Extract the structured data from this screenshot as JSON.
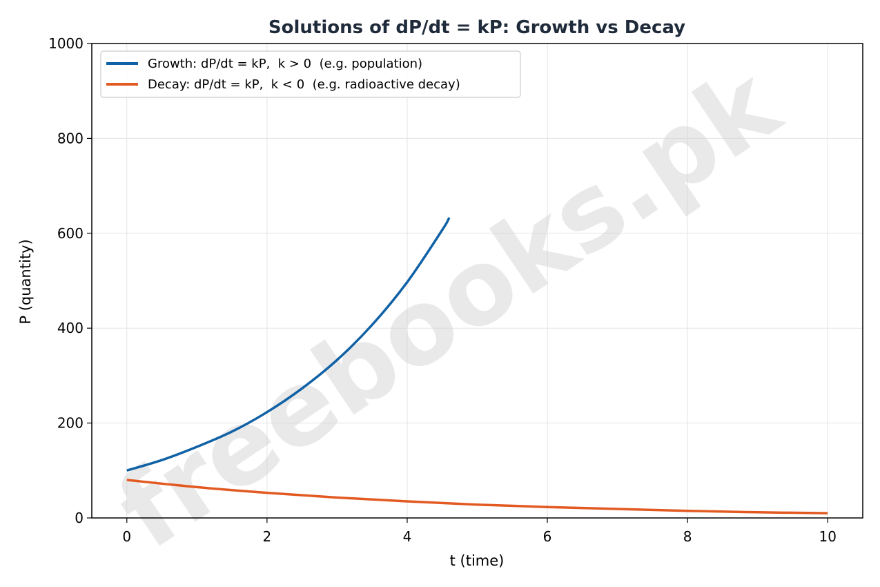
{
  "watermark": "freebooks.pk",
  "chart_data": {
    "type": "line",
    "title": "Solutions of dP/dt = kP: Growth vs Decay",
    "xlabel": "t (time)",
    "ylabel": "P (quantity)",
    "xlim": [
      -0.5,
      10.5
    ],
    "ylim": [
      0,
      1000
    ],
    "xticks": [
      0,
      2,
      4,
      6,
      8,
      10
    ],
    "yticks": [
      0,
      200,
      400,
      600,
      800,
      1000
    ],
    "grid": true,
    "legend_position": "top-left",
    "series": [
      {
        "name": "Growth: dP/dt = kP,  k > 0  (e.g. population)",
        "color": "#1061a5",
        "x": [
          0,
          0.5,
          1,
          1.5,
          2,
          2.5,
          3,
          3.5,
          4,
          4.5,
          4.6
        ],
        "y": [
          100,
          122,
          150,
          182,
          223,
          273,
          333,
          407,
          497,
          607,
          633
        ]
      },
      {
        "name": "Decay: dP/dt = kP,  k < 0  (e.g. radioactive decay)",
        "color": "#e25a22",
        "x": [
          0,
          1,
          2,
          3,
          4,
          5,
          6,
          7,
          8,
          9,
          10
        ],
        "y": [
          80,
          65,
          53,
          43,
          35,
          28,
          23,
          19,
          15,
          12,
          10
        ]
      }
    ]
  }
}
